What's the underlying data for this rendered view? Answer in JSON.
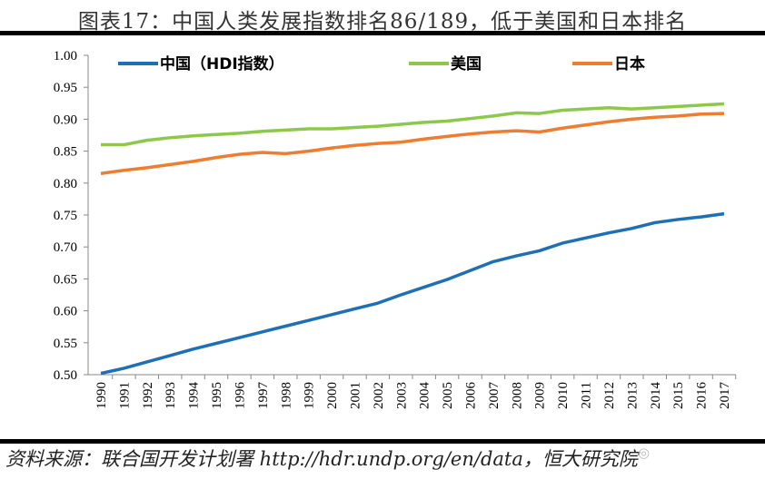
{
  "title": "图表17：中国人类发展指数排名86/189，低于美国和日本排名",
  "source": "资料来源：联合国开发计划署 http://hdr.undp.org/en/data，恒大研究院",
  "watermark": "泽平宏观",
  "chart_data": {
    "type": "line",
    "title": "图表17：中国人类发展指数排名86/189，低于美国和日本排名",
    "xlabel": "",
    "ylabel": "",
    "ylim": [
      0.5,
      1.0
    ],
    "yticks": [
      "0.50",
      "0.55",
      "0.60",
      "0.65",
      "0.70",
      "0.75",
      "0.80",
      "0.85",
      "0.90",
      "0.95",
      "1.00"
    ],
    "grid": false,
    "legend": "top",
    "x": [
      "1990",
      "1991",
      "1992",
      "1993",
      "1994",
      "1995",
      "1996",
      "1997",
      "1998",
      "1999",
      "2000",
      "2001",
      "2002",
      "2003",
      "2004",
      "2005",
      "2006",
      "2007",
      "2008",
      "2009",
      "2010",
      "2011",
      "2012",
      "2013",
      "2014",
      "2015",
      "2016",
      "2017"
    ],
    "series": [
      {
        "name": "中国（HDI指数）",
        "color": "#1f6fb5",
        "values": [
          0.502,
          0.51,
          0.52,
          0.53,
          0.54,
          0.549,
          0.558,
          0.567,
          0.576,
          0.585,
          0.594,
          0.603,
          0.612,
          0.625,
          0.637,
          0.649,
          0.663,
          0.677,
          0.686,
          0.694,
          0.706,
          0.714,
          0.722,
          0.729,
          0.738,
          0.743,
          0.747,
          0.752
        ]
      },
      {
        "name": "美国",
        "color": "#8cc84b",
        "values": [
          0.86,
          0.86,
          0.867,
          0.871,
          0.874,
          0.876,
          0.878,
          0.881,
          0.883,
          0.885,
          0.885,
          0.887,
          0.889,
          0.892,
          0.895,
          0.897,
          0.901,
          0.905,
          0.91,
          0.909,
          0.914,
          0.916,
          0.918,
          0.916,
          0.918,
          0.92,
          0.922,
          0.924
        ]
      },
      {
        "name": "日本",
        "color": "#ed7d31",
        "values": [
          0.815,
          0.82,
          0.824,
          0.829,
          0.834,
          0.84,
          0.845,
          0.848,
          0.846,
          0.85,
          0.855,
          0.859,
          0.862,
          0.864,
          0.869,
          0.873,
          0.877,
          0.88,
          0.882,
          0.88,
          0.886,
          0.891,
          0.896,
          0.9,
          0.903,
          0.905,
          0.908,
          0.909
        ]
      }
    ]
  }
}
